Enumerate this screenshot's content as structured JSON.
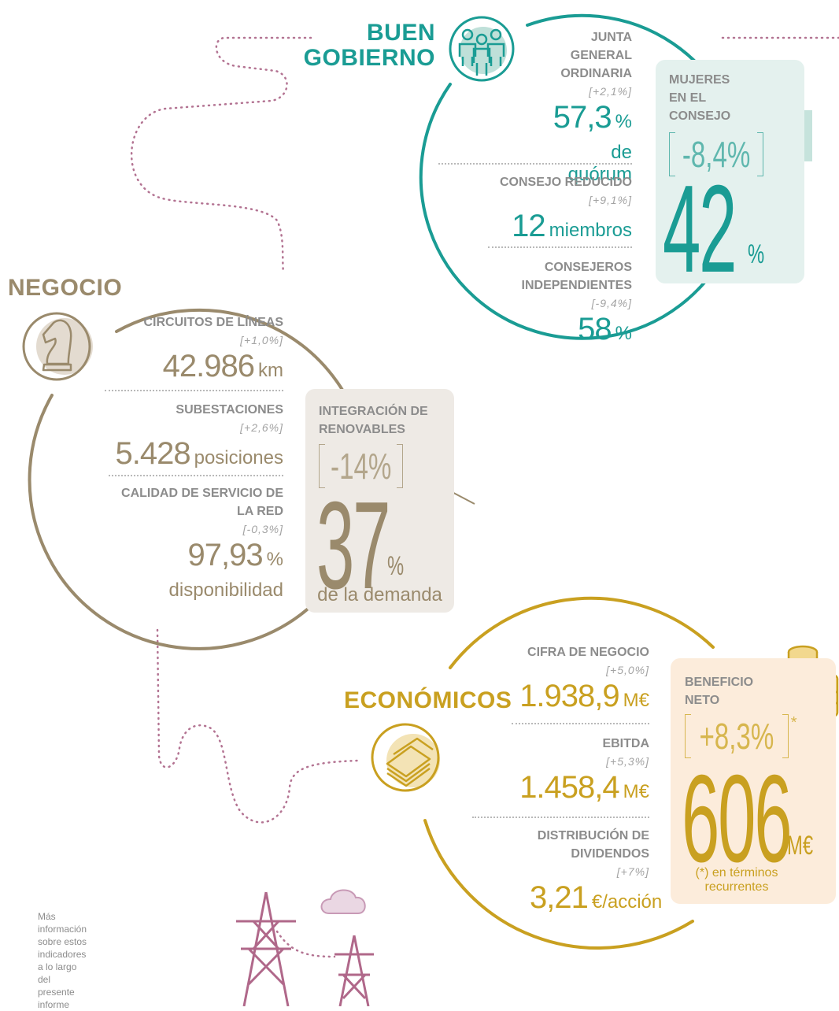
{
  "governance": {
    "title_lines": [
      "BUEN",
      "GOBIERNO"
    ],
    "indicators": [
      {
        "label": "JUNTA GENERAL ORDINARIA",
        "change": "[+2,1%]",
        "value": "57,3",
        "unit": "%",
        "note": "de quórum"
      },
      {
        "label": "CONSEJO REDUCIDO",
        "change": "[+9,1%]",
        "value": "12",
        "unit": "miembros"
      },
      {
        "label": "CONSEJEROS INDEPENDIENTES",
        "change": "[-9,4%]",
        "value": "58",
        "unit": "%"
      }
    ],
    "highlight": {
      "label": "MUJERES EN EL CONSEJO",
      "change": "-8,4%",
      "value": "42",
      "unit": "%"
    }
  },
  "business": {
    "title": "NEGOCIO",
    "indicators": [
      {
        "label": "CIRCUITOS DE LÍNEAS",
        "change": "[+1,0%]",
        "value": "42.986",
        "unit": "km"
      },
      {
        "label": "SUBESTACIONES",
        "change": "[+2,6%]",
        "value": "5.428",
        "unit": "posiciones"
      },
      {
        "label": "CALIDAD DE SERVICIO DE LA RED",
        "change": "[-0,3%]",
        "value": "97,93",
        "unit": "%",
        "note": "disponibilidad"
      }
    ],
    "highlight": {
      "label": "INTEGRACIÓN DE RENOVABLES",
      "change": "-14%",
      "value": "37",
      "unit": "%",
      "note": "de la demanda"
    }
  },
  "economic": {
    "title": "ECONÓMICOS",
    "indicators": [
      {
        "label": "CIFRA DE NEGOCIO",
        "change": "[+5,0%]",
        "value": "1.938,9",
        "unit": "M€"
      },
      {
        "label": "EBITDA",
        "change": "[+5,3%]",
        "value": "1.458,4",
        "unit": "M€"
      },
      {
        "label": "DISTRIBUCIÓN DE DIVIDENDOS",
        "change": "[+7%]",
        "value": "3,21",
        "unit": "€/acción"
      }
    ],
    "highlight": {
      "label": "BENEFICIO NETO",
      "change": "+8,3%",
      "asterisk": "*",
      "value": "606",
      "unit": "M€",
      "footnote": "(*) en términos recurrentes"
    }
  },
  "footer_note": "Más información sobre estos indicadores a lo largo del presente informe"
}
